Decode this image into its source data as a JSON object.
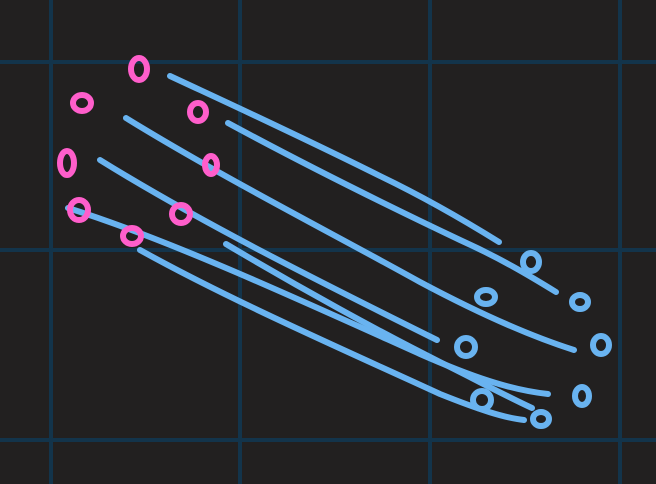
{
  "colors": {
    "background": "#222020",
    "grid": "#13344b",
    "stroke_blue": "#69b3f0",
    "stroke_pink": "#ff5ecb"
  },
  "icons": {
    "pink_marks": "hand-drawn-circle-icon",
    "blue_marks": "hand-drawn-circle-icon"
  }
}
